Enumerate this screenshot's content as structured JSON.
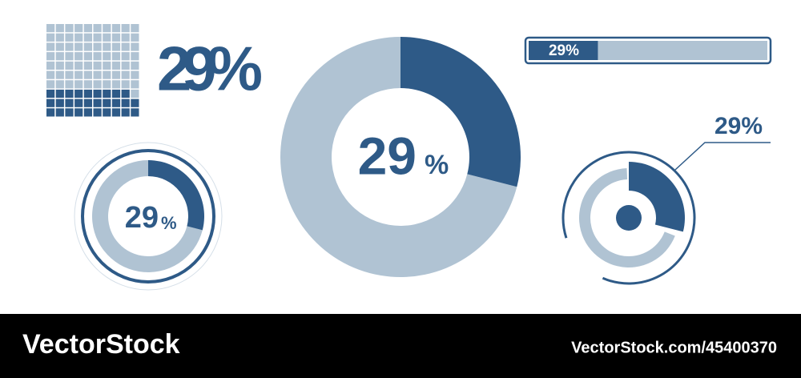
{
  "percent": 29,
  "colors": {
    "fill": "#2e5a87",
    "rest": "#b0c3d3"
  },
  "waffle": {
    "label": "29%"
  },
  "ring_gauge": {
    "number": "29",
    "unit": "%"
  },
  "donut": {
    "number": "29",
    "unit": "%"
  },
  "progress_bar": {
    "label": "29%"
  },
  "callout_donut": {
    "label": "29%"
  },
  "footer": {
    "brand": "VectorStock",
    "credit": "VectorStock.com/45400370"
  }
}
